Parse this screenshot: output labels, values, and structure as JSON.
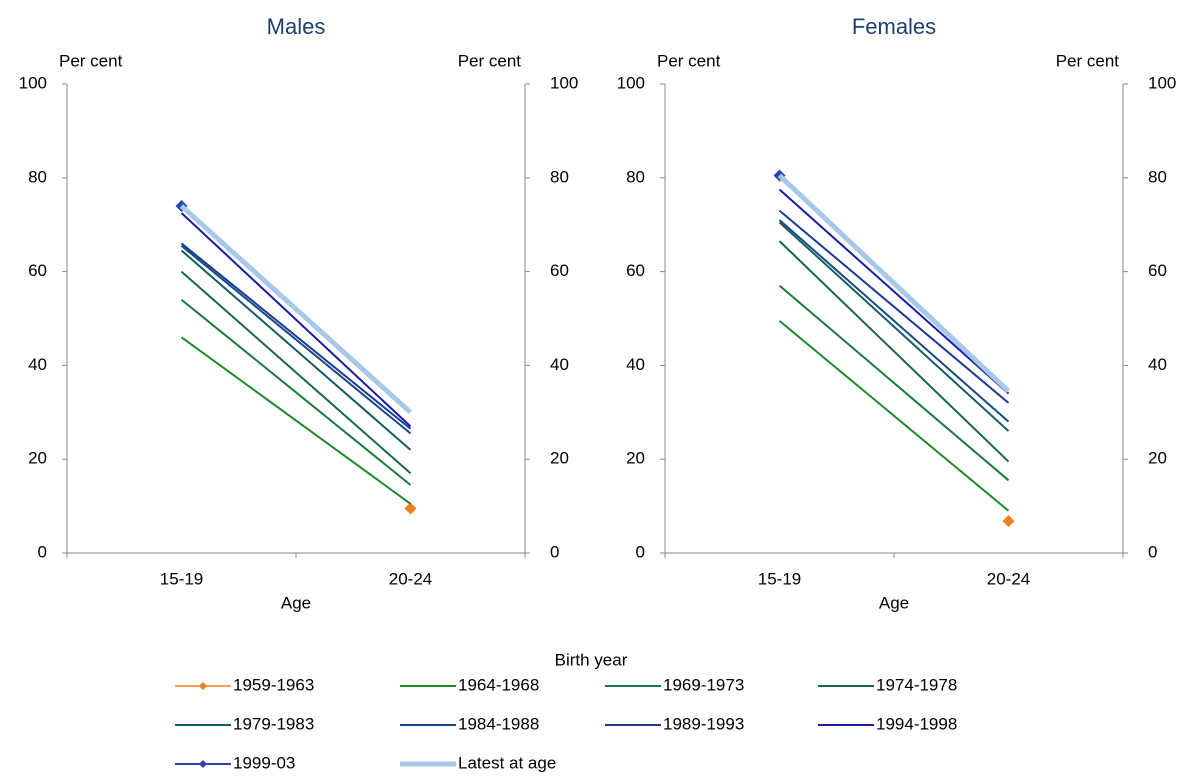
{
  "chart_data": [
    {
      "type": "line",
      "title": "Males",
      "ylabel": "Per cent",
      "y2label": "Per cent",
      "xlabel": "Age",
      "categories": [
        "15-19",
        "20-24"
      ],
      "ylim": [
        0,
        100
      ],
      "yticks": [
        0,
        20,
        40,
        60,
        80,
        100
      ],
      "y2lim": [
        0,
        100
      ],
      "y2ticks": [
        0,
        20,
        40,
        60,
        80,
        100
      ],
      "legend_title": "Birth year",
      "series": [
        {
          "name": "1959-1963",
          "color": "#f07f1f",
          "marker": "diamond",
          "width": 1.5,
          "values": [
            null,
            9.5
          ]
        },
        {
          "name": "1964-1968",
          "color": "#1e8a2e",
          "width": 2,
          "values": [
            46,
            10.5
          ]
        },
        {
          "name": "1969-1973",
          "color": "#1a7a40",
          "width": 2,
          "values": [
            54,
            14.5
          ]
        },
        {
          "name": "1974-1978",
          "color": "#166650",
          "width": 2,
          "values": [
            60,
            17
          ]
        },
        {
          "name": "1979-1983",
          "color": "#145c66",
          "width": 2,
          "values": [
            64.5,
            22
          ]
        },
        {
          "name": "1984-1988",
          "color": "#164a80",
          "width": 2,
          "values": [
            65.5,
            25.5
          ]
        },
        {
          "name": "1989-1993",
          "color": "#1a3a9a",
          "width": 2,
          "values": [
            66,
            26.5
          ]
        },
        {
          "name": "1994-1998",
          "color": "#1a1aa8",
          "width": 2,
          "values": [
            72.5,
            27
          ]
        },
        {
          "name": "1999-03",
          "color": "#2b45b0",
          "marker": "diamond",
          "width": 2,
          "values": [
            74,
            null
          ]
        },
        {
          "name": "Latest at age",
          "color": "#a8c8ea",
          "width": 5,
          "values": [
            74,
            30
          ]
        }
      ]
    },
    {
      "type": "line",
      "title": "Females",
      "ylabel": "Per cent",
      "y2label": "Per cent",
      "xlabel": "Age",
      "categories": [
        "15-19",
        "20-24"
      ],
      "ylim": [
        0,
        100
      ],
      "yticks": [
        0,
        20,
        40,
        60,
        80,
        100
      ],
      "y2lim": [
        0,
        100
      ],
      "y2ticks": [
        0,
        20,
        40,
        60,
        80,
        100
      ],
      "series": [
        {
          "color": "#f07f1f",
          "marker": "diamond",
          "width": 1.5,
          "values": [
            null,
            6.8
          ]
        },
        {
          "color": "#1e8a2e",
          "width": 2,
          "values": [
            49.5,
            9
          ]
        },
        {
          "color": "#1a7a40",
          "width": 2,
          "values": [
            57,
            15.5
          ]
        },
        {
          "color": "#166650",
          "width": 2,
          "values": [
            66.5,
            19.5
          ]
        },
        {
          "color": "#145c66",
          "width": 2,
          "values": [
            70.5,
            26
          ]
        },
        {
          "color": "#164a80",
          "width": 2,
          "values": [
            71,
            28
          ]
        },
        {
          "color": "#1a3a9a",
          "width": 2,
          "values": [
            73,
            32
          ]
        },
        {
          "color": "#1a1aa8",
          "width": 2,
          "values": [
            77.5,
            34
          ]
        },
        {
          "color": "#2b45b0",
          "marker": "diamond",
          "width": 2,
          "values": [
            80.5,
            null
          ]
        },
        {
          "color": "#a8c8ea",
          "width": 5,
          "values": [
            80.5,
            34.5
          ]
        }
      ]
    }
  ]
}
